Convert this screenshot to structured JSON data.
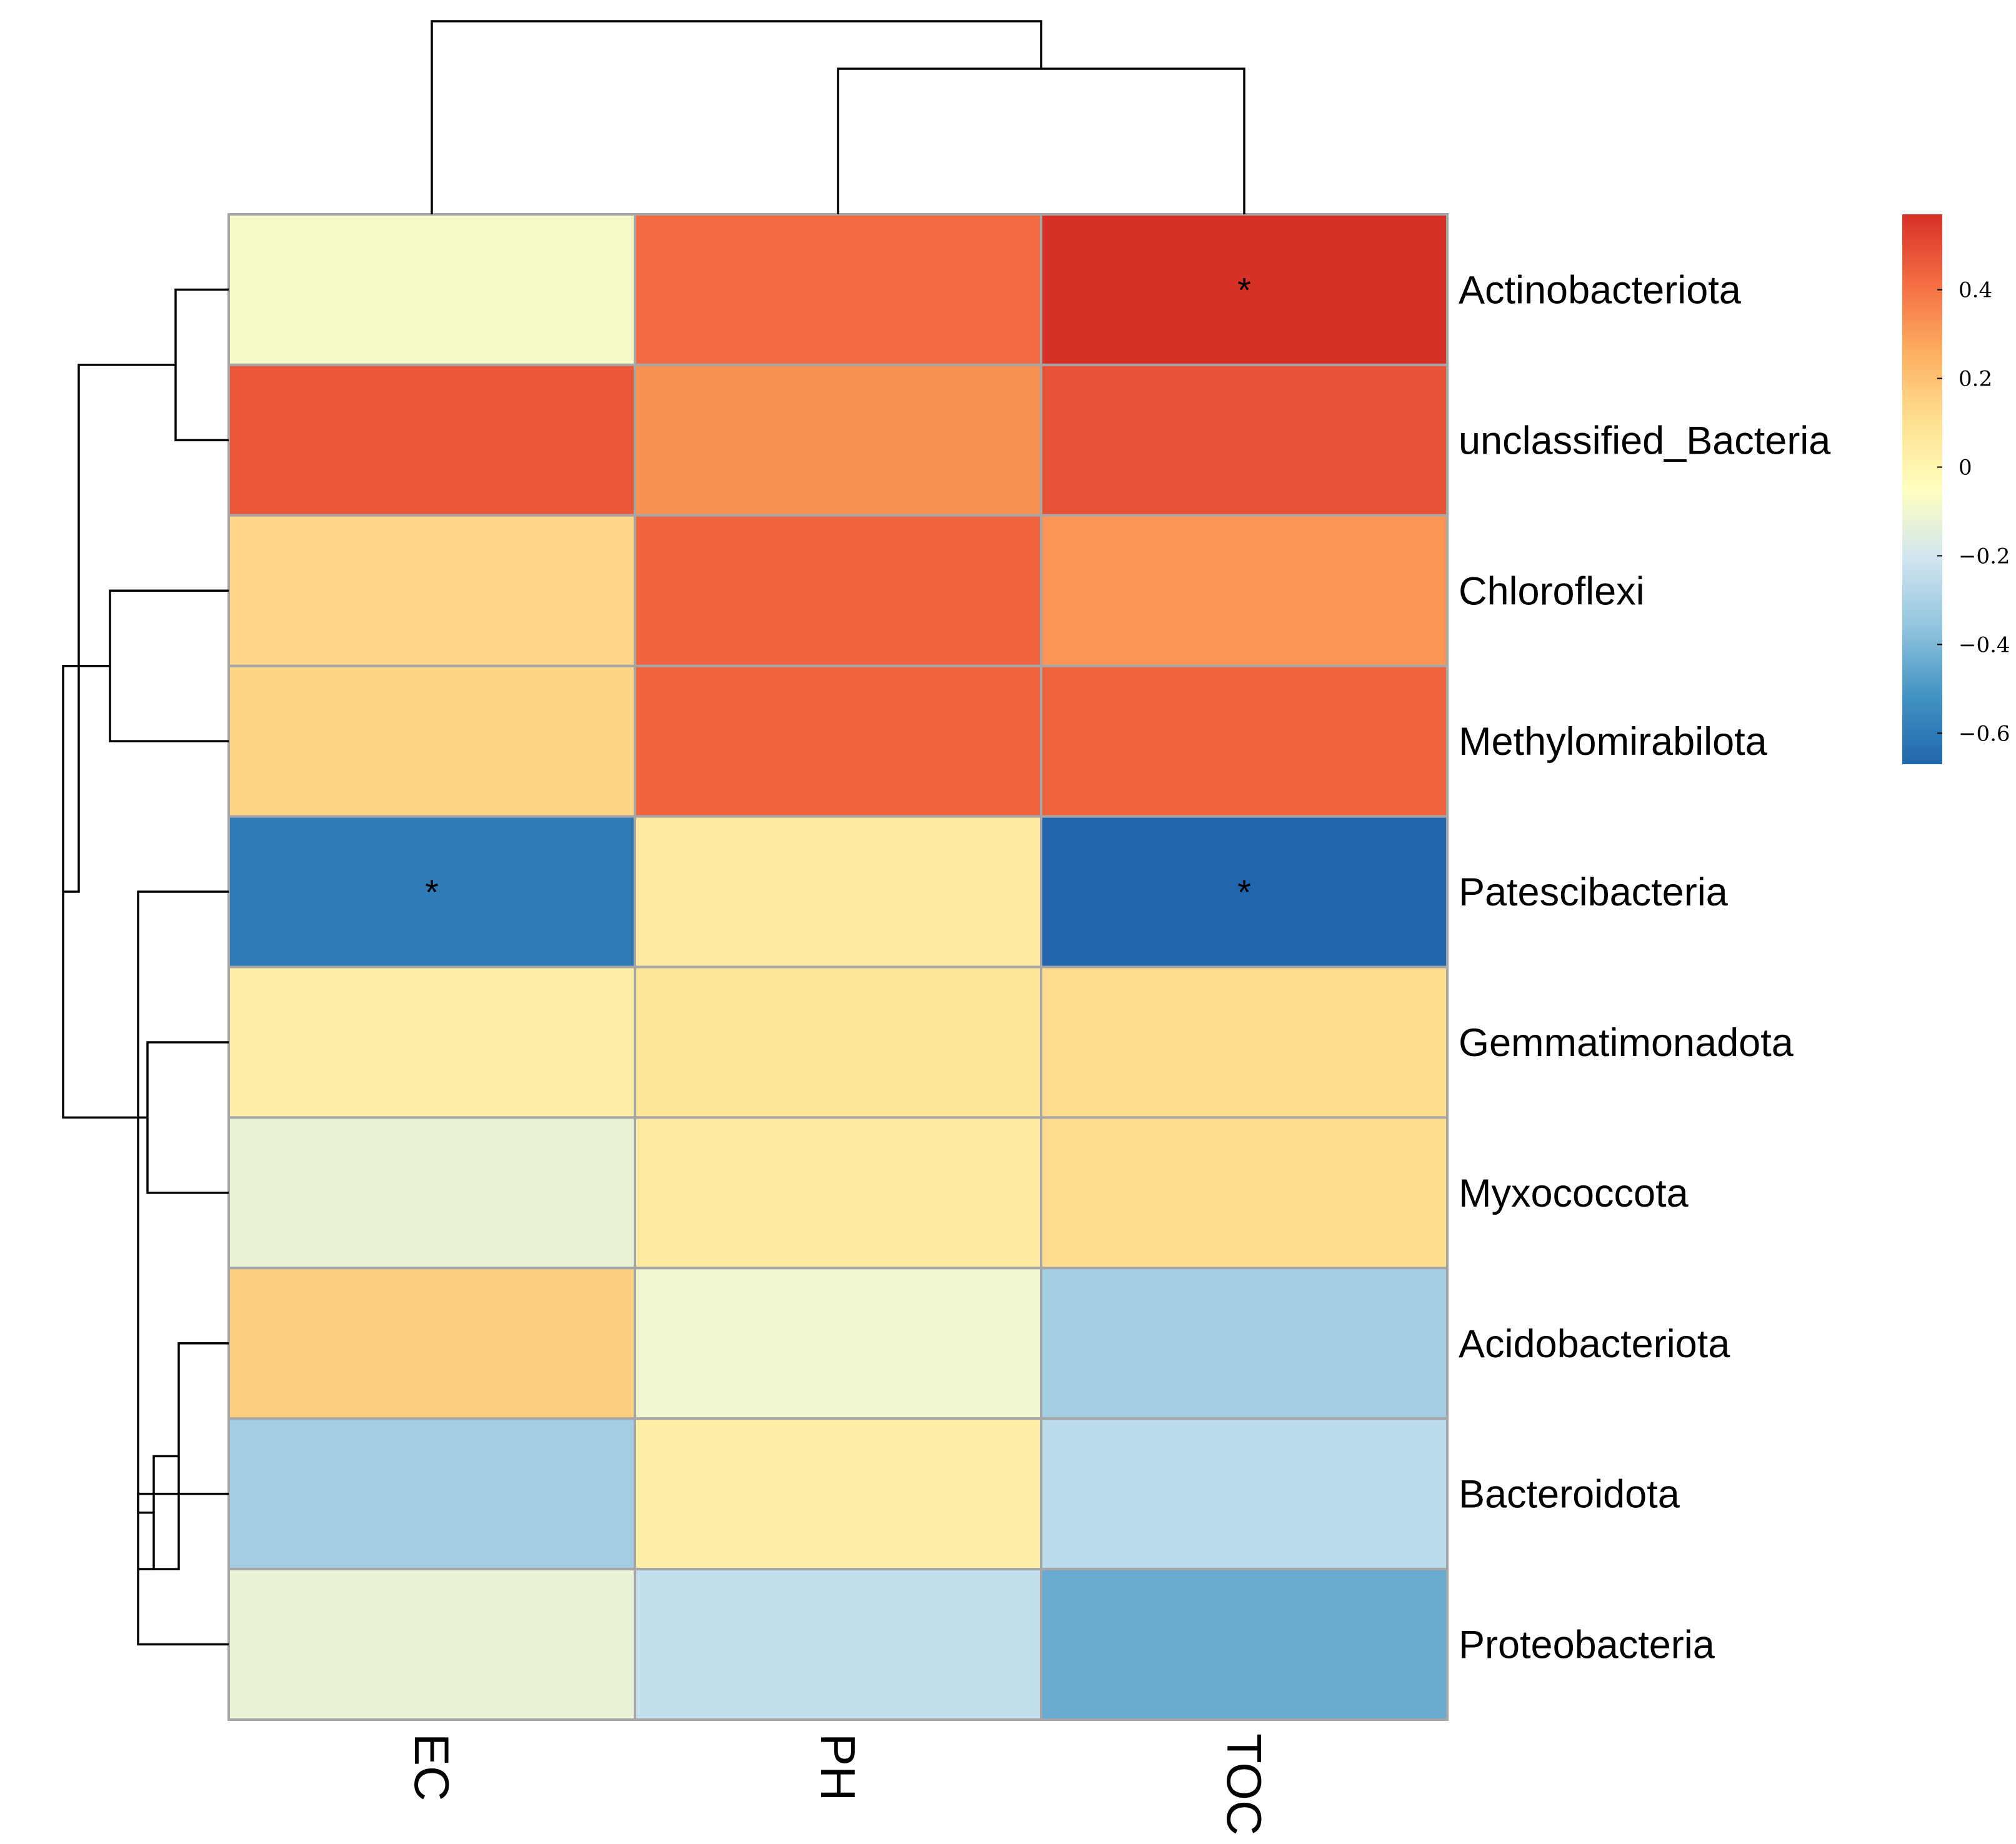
{
  "chart_data": {
    "type": "heatmap",
    "title": "",
    "columns": [
      "EC",
      "PH",
      "TOC"
    ],
    "rows": [
      "Actinobacteriota",
      "unclassified_Bacteria",
      "Chloroflexi",
      "Methylomirabilota",
      "Patescibacteria",
      "Gemmatimonadota",
      "Myxococcota",
      "Acidobacteriota",
      "Bacteroidota",
      "Proteobacteria"
    ],
    "values": [
      [
        -0.08,
        0.42,
        0.57
      ],
      [
        0.47,
        0.33,
        0.48
      ],
      [
        0.13,
        0.44,
        0.32
      ],
      [
        0.14,
        0.44,
        0.44
      ],
      [
        -0.6,
        0.05,
        -0.67
      ],
      [
        0.03,
        0.08,
        0.11
      ],
      [
        -0.12,
        0.05,
        0.11
      ],
      [
        0.16,
        -0.1,
        -0.32
      ],
      [
        -0.32,
        0.03,
        -0.26
      ],
      [
        -0.12,
        -0.24,
        -0.44
      ]
    ],
    "significance": [
      [
        "",
        "",
        "*"
      ],
      [
        "",
        "",
        ""
      ],
      [
        "",
        "",
        ""
      ],
      [
        "",
        "",
        ""
      ],
      [
        "*",
        "",
        "*"
      ],
      [
        "",
        "",
        ""
      ],
      [
        "",
        "",
        ""
      ],
      [
        "",
        "",
        ""
      ],
      [
        "",
        "",
        ""
      ],
      [
        "",
        "",
        ""
      ]
    ],
    "colorbar": {
      "range": [
        -0.67,
        0.57
      ],
      "ticks": [
        0.4,
        0.2,
        0,
        -0.2,
        -0.4,
        -0.6
      ],
      "tick_labels": [
        "0.4",
        "0.2",
        "0",
        "−0.2",
        "−0.4",
        "−0.6"
      ],
      "colors": [
        "#2166ac",
        "#4393c3",
        "#92c5de",
        "#d1e5f0",
        "#ffffbf",
        "#fee090",
        "#fdae61",
        "#f46d43",
        "#d73027"
      ]
    },
    "row_dendrogram": {
      "merges": [
        [
          2,
          3
        ],
        [
          5,
          6
        ],
        [
          8,
          9
        ],
        [
          0,
          1
        ],
        [
          7,
          12
        ],
        [
          -1,
          -2
        ],
        [
          -3,
          -5
        ],
        [
          4,
          -7
        ],
        [
          -4,
          -6
        ]
      ]
    },
    "column_dendrogram": {
      "merges": [
        [
          1,
          2
        ],
        [
          0,
          -1
        ]
      ]
    }
  }
}
